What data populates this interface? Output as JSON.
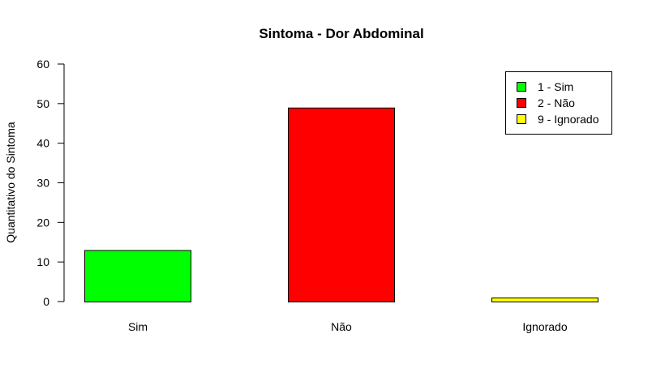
{
  "chart_data": {
    "type": "bar",
    "title": "Sintoma - Dor Abdominal",
    "xlabel": "",
    "ylabel": "Quantitativo do Sintoma",
    "categories": [
      "Sim",
      "Não",
      "Ignorado"
    ],
    "values": [
      13,
      49,
      1
    ],
    "colors": [
      "#00ff00",
      "#ff0000",
      "#ffff00"
    ],
    "ylim": [
      0,
      60
    ],
    "yticks": [
      "0",
      "10",
      "20",
      "30",
      "40",
      "50",
      "60"
    ],
    "grid": false,
    "legend": {
      "position": "top-right",
      "entries": [
        {
          "label": "1 - Sim",
          "color": "#00ff00"
        },
        {
          "label": "2 - Não",
          "color": "#ff0000"
        },
        {
          "label": "9 - Ignorado",
          "color": "#ffff00"
        }
      ]
    }
  }
}
